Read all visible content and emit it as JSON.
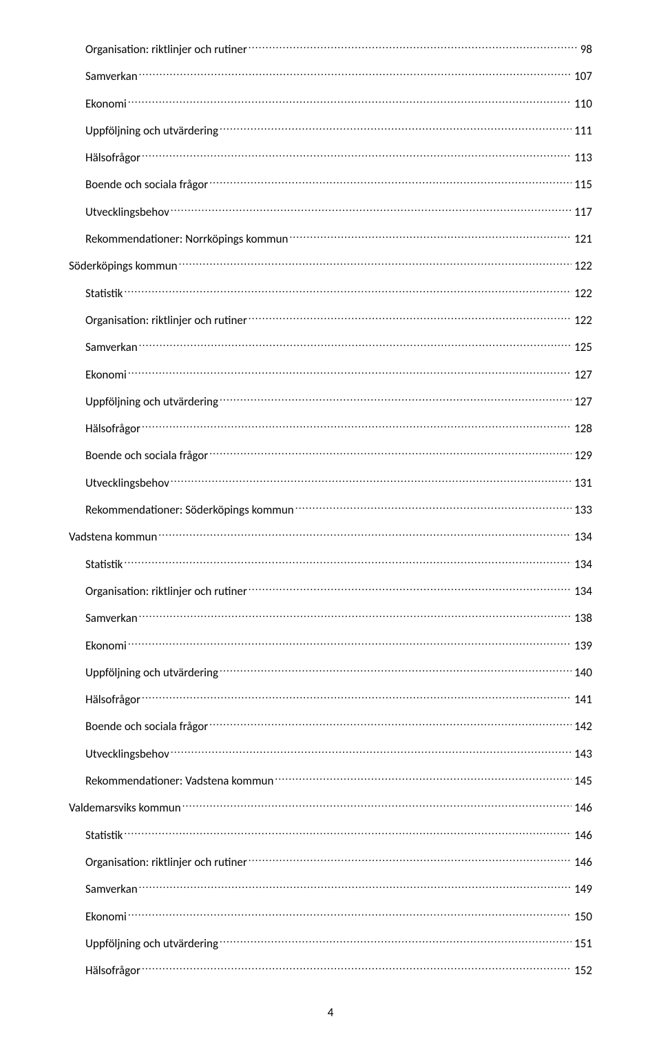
{
  "toc": {
    "entries": [
      {
        "label": "Organisation: riktlinjer och rutiner",
        "page": "98",
        "indent": 1
      },
      {
        "label": "Samverkan",
        "page": "107",
        "indent": 1
      },
      {
        "label": "Ekonomi",
        "page": "110",
        "indent": 1
      },
      {
        "label": "Uppföljning och utvärdering",
        "page": "111",
        "indent": 1
      },
      {
        "label": "Hälsofrågor",
        "page": "113",
        "indent": 1
      },
      {
        "label": "Boende och sociala frågor",
        "page": "115",
        "indent": 1
      },
      {
        "label": "Utvecklingsbehov",
        "page": "117",
        "indent": 1
      },
      {
        "label": "Rekommendationer: Norrköpings kommun",
        "page": "121",
        "indent": 1
      },
      {
        "label": "Söderköpings kommun",
        "page": "122",
        "indent": 0
      },
      {
        "label": "Statistik",
        "page": "122",
        "indent": 1
      },
      {
        "label": "Organisation: riktlinjer och rutiner",
        "page": "122",
        "indent": 1
      },
      {
        "label": "Samverkan",
        "page": "125",
        "indent": 1
      },
      {
        "label": "Ekonomi",
        "page": "127",
        "indent": 1
      },
      {
        "label": "Uppföljning och utvärdering",
        "page": "127",
        "indent": 1
      },
      {
        "label": "Hälsofrågor",
        "page": "128",
        "indent": 1
      },
      {
        "label": "Boende och sociala frågor",
        "page": "129",
        "indent": 1
      },
      {
        "label": "Utvecklingsbehov",
        "page": "131",
        "indent": 1
      },
      {
        "label": "Rekommendationer: Söderköpings kommun",
        "page": "133",
        "indent": 1
      },
      {
        "label": "Vadstena kommun",
        "page": "134",
        "indent": 0
      },
      {
        "label": "Statistik",
        "page": "134",
        "indent": 1
      },
      {
        "label": "Organisation: riktlinjer och rutiner",
        "page": "134",
        "indent": 1
      },
      {
        "label": "Samverkan",
        "page": "138",
        "indent": 1
      },
      {
        "label": "Ekonomi",
        "page": "139",
        "indent": 1
      },
      {
        "label": "Uppföljning och utvärdering",
        "page": "140",
        "indent": 1
      },
      {
        "label": "Hälsofrågor",
        "page": "141",
        "indent": 1
      },
      {
        "label": "Boende och sociala frågor",
        "page": "142",
        "indent": 1
      },
      {
        "label": "Utvecklingsbehov",
        "page": "143",
        "indent": 1
      },
      {
        "label": "Rekommendationer: Vadstena kommun",
        "page": "145",
        "indent": 1
      },
      {
        "label": "Valdemarsviks kommun",
        "page": "146",
        "indent": 0
      },
      {
        "label": "Statistik",
        "page": "146",
        "indent": 1
      },
      {
        "label": "Organisation: riktlinjer och rutiner",
        "page": "146",
        "indent": 1
      },
      {
        "label": "Samverkan",
        "page": "149",
        "indent": 1
      },
      {
        "label": "Ekonomi",
        "page": "150",
        "indent": 1
      },
      {
        "label": "Uppföljning och utvärdering",
        "page": "151",
        "indent": 1
      },
      {
        "label": "Hälsofrågor",
        "page": "152",
        "indent": 1
      }
    ]
  },
  "footer": {
    "page_number": "4"
  },
  "style": {
    "text_color": "#000000",
    "background_color": "#ffffff",
    "font_family": "Calibri",
    "font_size_pt": 12
  }
}
